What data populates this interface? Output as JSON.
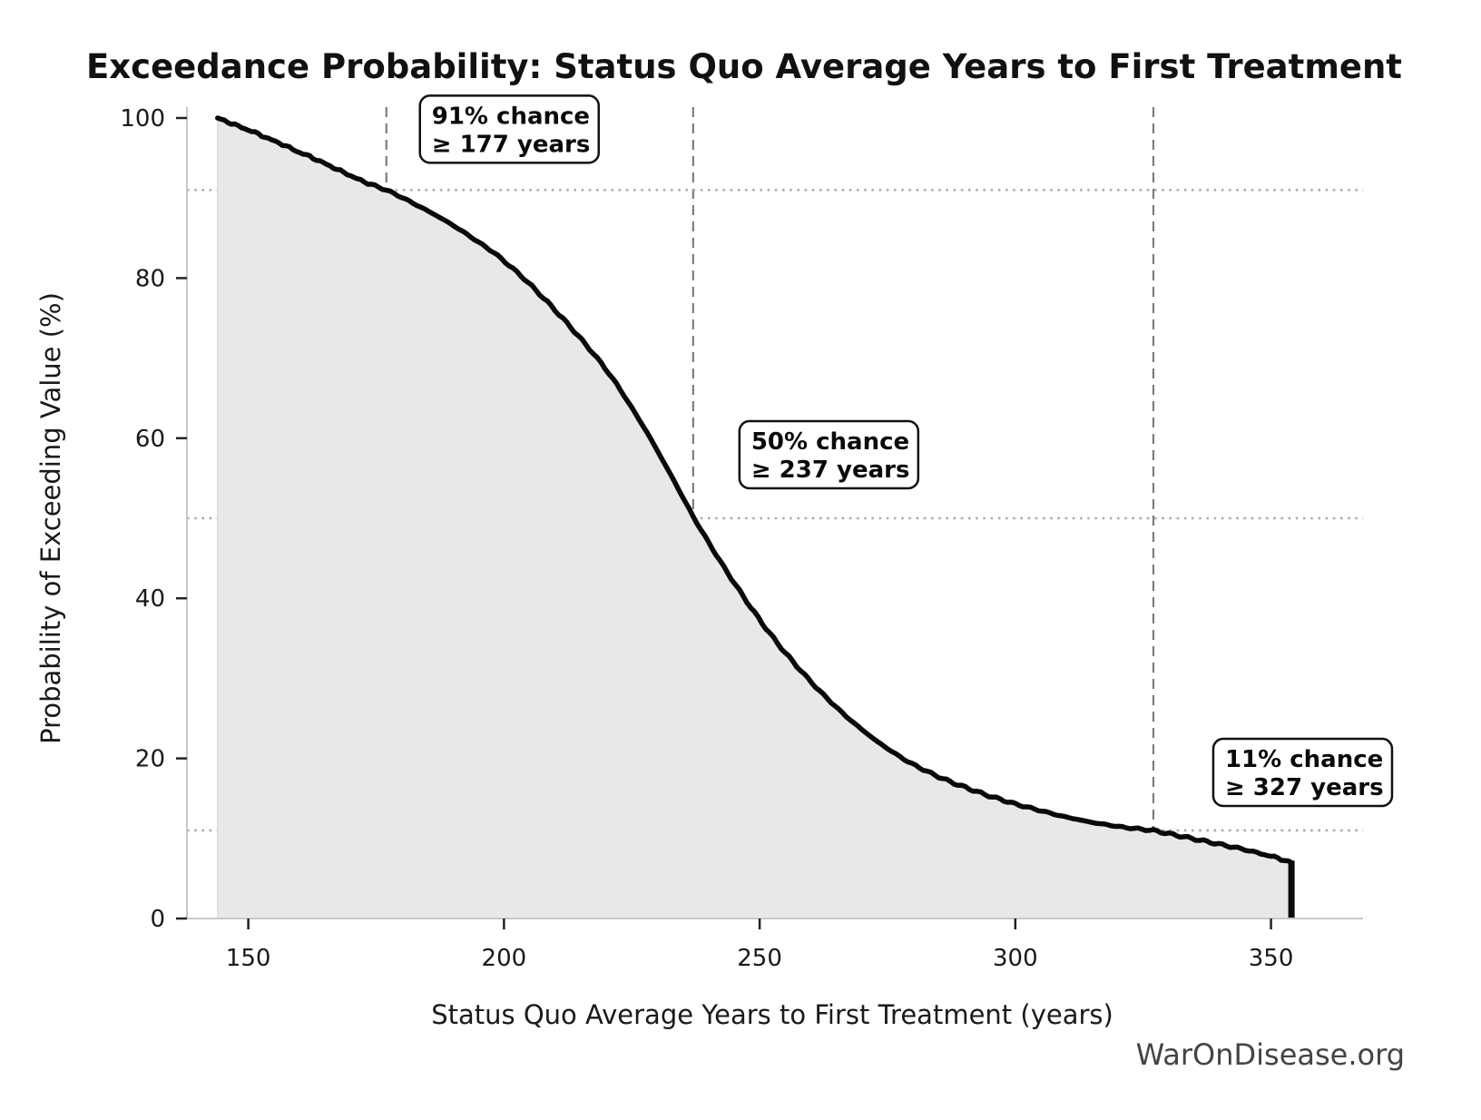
{
  "title": "Exceedance Probability: Status Quo Average Years to First Treatment",
  "watermark": "WarOnDisease.org",
  "colors": {
    "curve": "#0a0a0a",
    "fill": "#e8e8e8",
    "fill_edge": "#d4d4d4",
    "dashed_line": "#7d7d7d",
    "dotted_line": "#ababab",
    "spine": "#c9c9c9",
    "tick": "#222222",
    "text": "#111111",
    "watermark": "#444444",
    "annotation_border": "#111111",
    "annotation_bg": "#ffffff"
  },
  "chart_data": {
    "type": "area",
    "title": "Exceedance Probability: Status Quo Average Years to First Treatment",
    "xlabel": "Status Quo Average Years to First Treatment (years)",
    "ylabel": "Probability of Exceeding Value (%)",
    "xlim": [
      138,
      368
    ],
    "ylim": [
      0,
      100
    ],
    "x_ticks": [
      150,
      200,
      250,
      300,
      350
    ],
    "y_ticks": [
      0,
      20,
      40,
      60,
      80,
      100
    ],
    "grid": "off",
    "legend": "none",
    "reference_lines": {
      "vertical_years": [
        177,
        237,
        327
      ],
      "horizontal_pcts": [
        91,
        50,
        11
      ]
    },
    "annotations": [
      {
        "chance_pct": 91,
        "years": 177,
        "line1": "91% chance",
        "line2": "≥ 177 years"
      },
      {
        "chance_pct": 50,
        "years": 237,
        "line1": "50% chance",
        "line2": "≥ 237 years"
      },
      {
        "chance_pct": 11,
        "years": 327,
        "line1": "11% chance",
        "line2": "≥ 327 years"
      }
    ],
    "series": [
      {
        "name": "exceedance-curve",
        "points": [
          [
            144,
            100.0
          ],
          [
            146,
            99.5
          ],
          [
            148,
            99.0
          ],
          [
            150,
            98.5
          ],
          [
            152,
            98.0
          ],
          [
            154,
            97.4
          ],
          [
            156,
            96.9
          ],
          [
            158,
            96.3
          ],
          [
            160,
            95.7
          ],
          [
            162,
            95.2
          ],
          [
            164,
            94.6
          ],
          [
            166,
            94.0
          ],
          [
            168,
            93.4
          ],
          [
            170,
            92.8
          ],
          [
            172,
            92.2
          ],
          [
            174,
            91.7
          ],
          [
            177,
            91.0
          ],
          [
            180,
            90.1
          ],
          [
            183,
            89.1
          ],
          [
            186,
            88.1
          ],
          [
            189,
            87.0
          ],
          [
            192,
            85.8
          ],
          [
            195,
            84.5
          ],
          [
            198,
            83.2
          ],
          [
            201,
            81.6
          ],
          [
            204,
            79.9
          ],
          [
            207,
            78.0
          ],
          [
            210,
            76.0
          ],
          [
            213,
            73.9
          ],
          [
            216,
            71.7
          ],
          [
            219,
            69.4
          ],
          [
            222,
            66.8
          ],
          [
            225,
            63.8
          ],
          [
            228,
            60.7
          ],
          [
            231,
            57.3
          ],
          [
            234,
            53.8
          ],
          [
            237,
            50.2
          ],
          [
            240,
            47.0
          ],
          [
            243,
            43.9
          ],
          [
            246,
            41.0
          ],
          [
            249,
            38.2
          ],
          [
            252,
            35.6
          ],
          [
            255,
            33.2
          ],
          [
            258,
            31.0
          ],
          [
            261,
            28.9
          ],
          [
            264,
            27.0
          ],
          [
            267,
            25.2
          ],
          [
            270,
            23.6
          ],
          [
            273,
            22.1
          ],
          [
            276,
            20.8
          ],
          [
            279,
            19.6
          ],
          [
            282,
            18.6
          ],
          [
            285,
            17.7
          ],
          [
            288,
            16.9
          ],
          [
            291,
            16.2
          ],
          [
            294,
            15.5
          ],
          [
            297,
            14.9
          ],
          [
            300,
            14.3
          ],
          [
            303,
            13.8
          ],
          [
            306,
            13.3
          ],
          [
            309,
            12.8
          ],
          [
            312,
            12.4
          ],
          [
            315,
            12.0
          ],
          [
            318,
            11.7
          ],
          [
            321,
            11.4
          ],
          [
            324,
            11.2
          ],
          [
            327,
            11.0
          ],
          [
            330,
            10.6
          ],
          [
            333,
            10.2
          ],
          [
            336,
            9.8
          ],
          [
            339,
            9.4
          ],
          [
            342,
            9.0
          ],
          [
            345,
            8.6
          ],
          [
            348,
            8.1
          ],
          [
            350,
            7.8
          ],
          [
            352,
            7.4
          ],
          [
            354,
            7.0
          ]
        ]
      }
    ],
    "terminal_drop": {
      "x": 354,
      "from_pct": 7.0,
      "to_pct": 0
    }
  }
}
